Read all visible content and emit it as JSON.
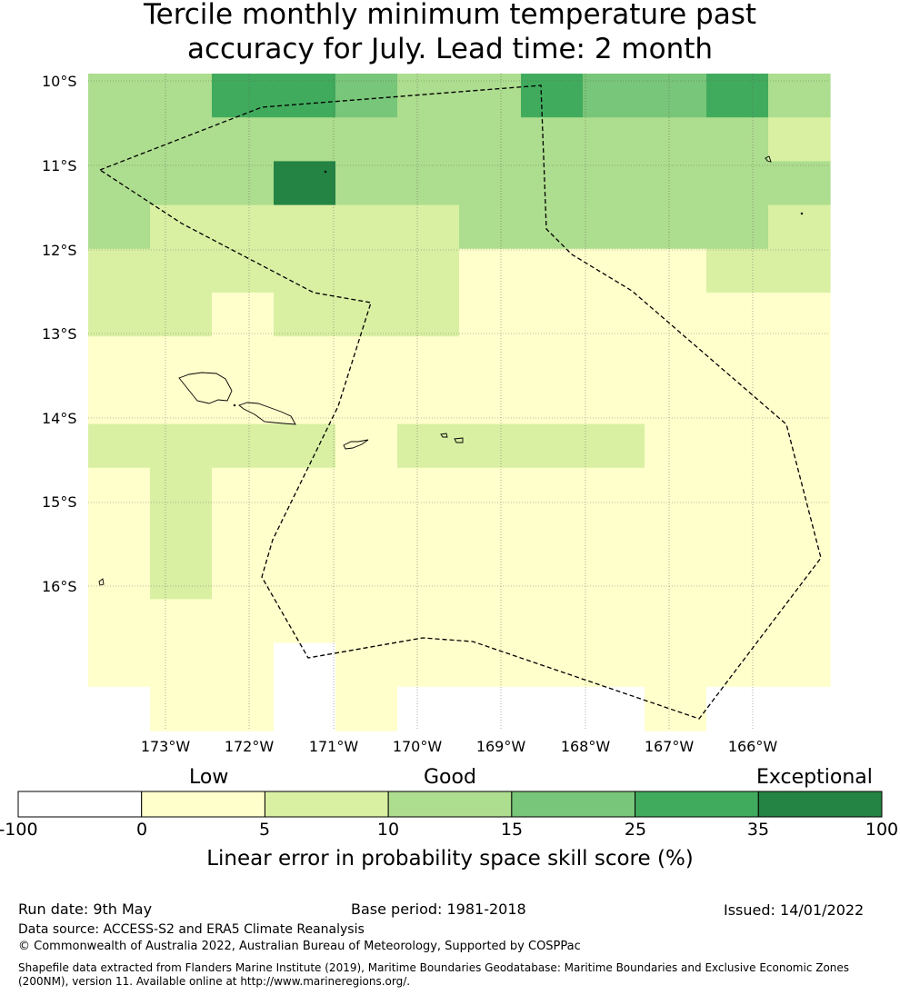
{
  "title_line1": "Tercile monthly minimum temperature past",
  "title_line2": "accuracy for July. Lead time: 2 month",
  "latitude_labels": [
    "10°S",
    "11°S",
    "12°S",
    "13°S",
    "14°S",
    "15°S",
    "16°S"
  ],
  "longitude_labels": [
    "173°W",
    "172°W",
    "171°W",
    "170°W",
    "169°W",
    "168°W",
    "167°W",
    "166°W"
  ],
  "colorbar": {
    "words": {
      "low": "Low",
      "good": "Good",
      "exceptional": "Exceptional"
    },
    "ticks": [
      "-100",
      "0",
      "5",
      "10",
      "15",
      "25",
      "35",
      "100"
    ],
    "colors": [
      "#ffffff",
      "#ffffcc",
      "#d9f0a3",
      "#addd8e",
      "#78c679",
      "#41ab5d",
      "#238443"
    ],
    "label": "Linear error in probability space skill score (%)"
  },
  "skill_grid": [
    [
      3,
      3,
      5,
      5,
      4,
      3,
      3,
      5,
      4,
      4,
      5,
      3
    ],
    [
      3,
      3,
      3,
      3,
      3,
      3,
      3,
      3,
      3,
      3,
      3,
      2
    ],
    [
      3,
      3,
      3,
      6,
      3,
      3,
      3,
      3,
      3,
      3,
      3,
      3
    ],
    [
      3,
      2,
      2,
      2,
      2,
      2,
      3,
      3,
      3,
      3,
      3,
      2
    ],
    [
      2,
      2,
      2,
      2,
      2,
      2,
      1,
      1,
      1,
      1,
      2,
      2
    ],
    [
      2,
      2,
      1,
      2,
      2,
      2,
      1,
      1,
      1,
      1,
      1,
      1
    ],
    [
      1,
      1,
      1,
      1,
      1,
      1,
      1,
      1,
      1,
      1,
      1,
      1
    ],
    [
      1,
      1,
      1,
      1,
      1,
      1,
      1,
      1,
      1,
      1,
      1,
      1
    ],
    [
      2,
      2,
      2,
      2,
      1,
      2,
      2,
      2,
      2,
      1,
      1,
      1
    ],
    [
      1,
      2,
      1,
      1,
      1,
      1,
      1,
      1,
      1,
      1,
      1,
      1
    ],
    [
      1,
      2,
      1,
      1,
      1,
      1,
      1,
      1,
      1,
      1,
      1,
      1
    ],
    [
      1,
      2,
      1,
      1,
      1,
      1,
      1,
      1,
      1,
      1,
      1,
      1
    ],
    [
      1,
      1,
      1,
      1,
      1,
      1,
      1,
      1,
      1,
      1,
      1,
      1
    ],
    [
      1,
      1,
      1,
      0,
      1,
      1,
      1,
      1,
      1,
      1,
      1,
      1
    ],
    [
      0,
      1,
      1,
      0,
      1,
      0,
      0,
      0,
      0,
      1,
      0,
      0
    ]
  ],
  "footer": {
    "run_date": "Run date: 9th May",
    "base_period": "Base period: 1981-2018",
    "issued": "Issued: 14/01/2022",
    "data_source": "Data source: ACCESS-S2 and ERA5 Climate Reanalysis",
    "copyright": "© Commonwealth of Australia 2022, Australian Bureau of Meteorology, Supported by COSPPac",
    "shapefile_line1": "Shapefile data extracted from Flanders Marine Institute (2019), Maritime Boundaries Geodatabase: Maritime Boundaries and Exclusive Economic Zones",
    "shapefile_line2": "(200NM), version 11. Available online at http://www.marineregions.org/."
  }
}
